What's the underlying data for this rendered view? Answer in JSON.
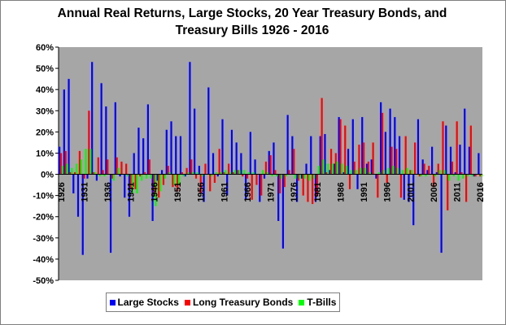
{
  "chart_data": {
    "type": "bar",
    "title": "Annual Real Returns, Large Stocks, 20 Year Treasury Bonds, and Treasury Bills 1926 - 2016",
    "title_lines": [
      "Annual Real Returns, Large Stocks, 20 Year Treasury Bonds, and",
      "Treasury Bills 1926 - 2016"
    ],
    "xlabel": "",
    "ylabel": "",
    "ylim": [
      -0.5,
      0.6
    ],
    "yticks": [
      -0.5,
      -0.4,
      -0.3,
      -0.2,
      -0.1,
      0.0,
      0.1,
      0.2,
      0.3,
      0.4,
      0.5,
      0.6
    ],
    "ytick_labels": [
      "-50%",
      "-40%",
      "-30%",
      "-20%",
      "-10%",
      "0%",
      "10%",
      "20%",
      "30%",
      "40%",
      "50%",
      "60%"
    ],
    "x_start": 1926,
    "x_end": 2016,
    "xtick_years": [
      1926,
      1931,
      1936,
      1941,
      1946,
      1951,
      1956,
      1961,
      1966,
      1971,
      1976,
      1981,
      1986,
      1991,
      1996,
      2001,
      2006,
      2011,
      2016
    ],
    "xtick_labels": [
      "1926",
      "1931",
      "1936",
      "1941",
      "1946",
      "1951",
      "1956",
      "1961",
      "1966",
      "1971",
      "1976",
      "1981",
      "1986",
      "1991",
      "1996",
      "2001",
      "2006",
      "2011",
      "2016"
    ],
    "grid": false,
    "legend_position": "bottom",
    "background": "#a6a6a6",
    "series": [
      {
        "name": "Large Stocks",
        "color": "#0000ff",
        "values": [
          0.13,
          0.4,
          0.45,
          -0.09,
          -0.2,
          -0.38,
          -0.02,
          0.53,
          -0.03,
          0.43,
          0.32,
          -0.37,
          0.34,
          -0.01,
          -0.11,
          -0.2,
          0.1,
          0.22,
          0.17,
          0.33,
          -0.22,
          -0.03,
          0.02,
          0.21,
          0.25,
          0.18,
          0.18,
          -0.01,
          0.53,
          0.31,
          0.04,
          -0.13,
          0.41,
          0.1,
          -0.01,
          0.26,
          -0.1,
          0.21,
          0.15,
          0.1,
          -0.12,
          0.2,
          0.07,
          -0.13,
          -0.02,
          0.11,
          0.15,
          -0.22,
          -0.35,
          0.28,
          0.18,
          -0.13,
          -0.02,
          0.05,
          0.18,
          -0.13,
          0.18,
          0.19,
          0.02,
          0.05,
          0.27,
          0.01,
          0.12,
          0.26,
          -0.07,
          0.27,
          0.05,
          0.07,
          -0.02,
          0.34,
          0.2,
          0.31,
          0.27,
          0.18,
          -0.12,
          -0.13,
          -0.24,
          0.26,
          0.07,
          0.02,
          0.13,
          0.01,
          -0.37,
          0.23,
          0.13,
          0.01,
          0.14,
          0.31,
          0.13,
          -0.01,
          0.1
        ]
      },
      {
        "name": "Long Treasury Bonds",
        "color": "#ff0000",
        "values": [
          0.1,
          0.11,
          0.01,
          0.01,
          0.11,
          -0.02,
          0.3,
          0.01,
          0.08,
          0.02,
          0.07,
          -0.02,
          0.08,
          0.06,
          0.05,
          -0.07,
          -0.07,
          -0.01,
          0.01,
          0.07,
          -0.1,
          -0.11,
          -0.05,
          0.04,
          -0.06,
          -0.08,
          0.01,
          0.03,
          0.07,
          -0.02,
          -0.09,
          0.05,
          -0.08,
          -0.04,
          0.12,
          0.01,
          0.05,
          0.01,
          0.02,
          -0.01,
          -0.02,
          -0.12,
          -0.05,
          -0.1,
          0.06,
          0.09,
          0.02,
          -0.09,
          -0.06,
          0.02,
          0.12,
          -0.03,
          -0.1,
          -0.13,
          -0.14,
          -0.1,
          0.36,
          0.01,
          0.12,
          0.1,
          0.26,
          0.23,
          -0.07,
          0.06,
          0.14,
          0.15,
          0.06,
          0.15,
          -0.11,
          0.29,
          -0.04,
          0.13,
          0.12,
          -0.11,
          0.18,
          0.02,
          0.15,
          -0.01,
          0.05,
          0.04,
          -0.06,
          0.05,
          0.25,
          -0.17,
          0.06,
          0.25,
          0.01,
          -0.13,
          0.23,
          -0.01,
          -0.01
        ]
      },
      {
        "name": "T-Bills",
        "color": "#00ff00",
        "values": [
          0.04,
          0.05,
          0.03,
          0.05,
          0.07,
          0.12,
          0.12,
          0.01,
          -0.01,
          -0.01,
          0.0,
          -0.03,
          0.03,
          0.0,
          -0.01,
          -0.09,
          -0.09,
          -0.03,
          -0.02,
          -0.02,
          -0.15,
          -0.08,
          -0.02,
          0.01,
          -0.05,
          -0.05,
          -0.01,
          0.01,
          0.01,
          0.01,
          -0.01,
          0.0,
          -0.01,
          0.01,
          0.01,
          0.02,
          0.01,
          0.02,
          0.02,
          0.02,
          0.01,
          0.01,
          0.0,
          0.02,
          0.01,
          -0.01,
          -0.01,
          -0.02,
          -0.01,
          0.0,
          -0.02,
          -0.02,
          -0.02,
          -0.03,
          -0.02,
          0.04,
          0.07,
          0.05,
          0.05,
          0.06,
          0.05,
          0.04,
          0.02,
          0.02,
          0.03,
          0.03,
          0.01,
          0.0,
          0.01,
          0.02,
          0.03,
          0.04,
          0.03,
          0.02,
          0.03,
          0.02,
          0.0,
          -0.01,
          -0.01,
          0.0,
          -0.01,
          0.02,
          0.02,
          -0.03,
          -0.01,
          -0.03,
          -0.02,
          -0.01,
          -0.01,
          0.0,
          -0.01
        ]
      }
    ]
  }
}
